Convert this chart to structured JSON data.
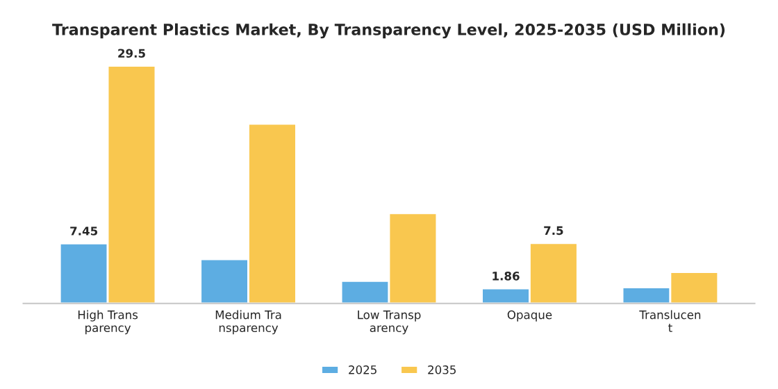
{
  "chart_data": {
    "type": "bar",
    "title": "Transparent Plastics Market, By Transparency Level, 2025-2035 (USD Million)",
    "categories": [
      "High Trans\nparency",
      "Medium Tra\nnsparency",
      "Low Transp\narency",
      "Opaque",
      "Translucen\nt"
    ],
    "series": [
      {
        "name": "2025",
        "color": "#5dade2",
        "values": [
          7.45,
          5.5,
          2.8,
          1.86,
          2.0
        ],
        "value_labels": [
          "7.45",
          null,
          null,
          "1.86",
          null
        ]
      },
      {
        "name": "2035",
        "color": "#f9c74f",
        "values": [
          29.5,
          22.3,
          11.2,
          7.5,
          3.9
        ],
        "value_labels": [
          "29.5",
          null,
          null,
          "7.5",
          null
        ]
      }
    ],
    "legend": "bottom",
    "grid": false
  }
}
